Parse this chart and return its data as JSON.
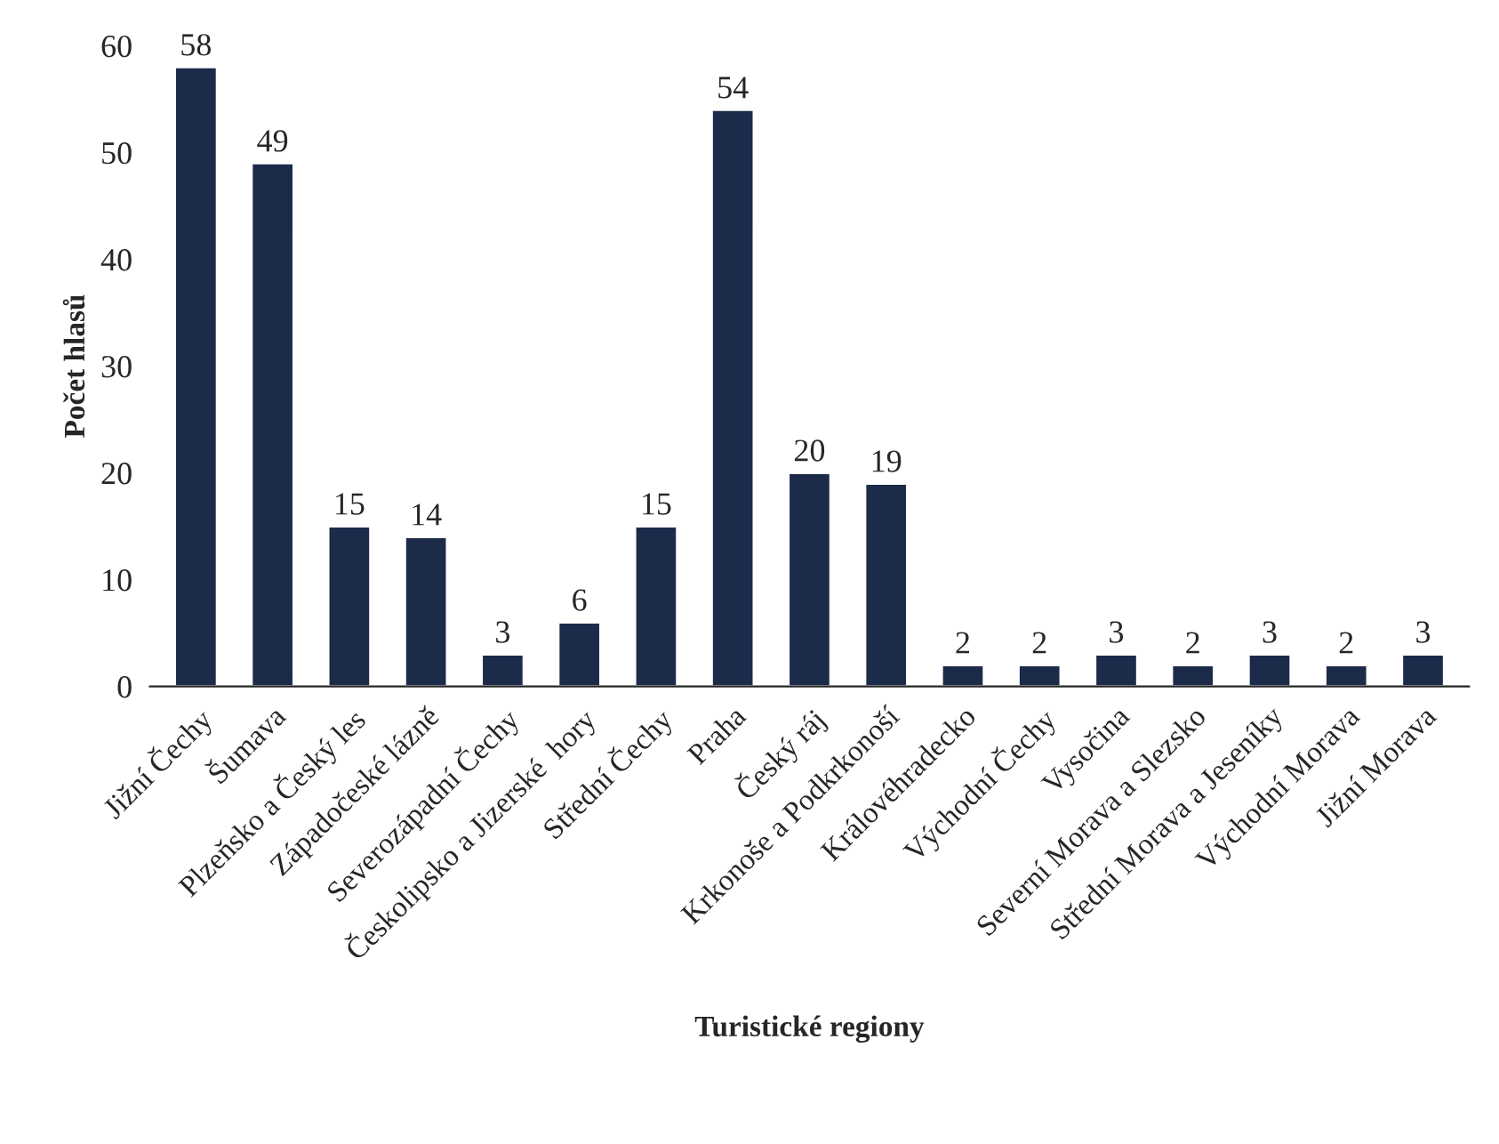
{
  "chart_data": {
    "type": "bar",
    "xlabel": "Turistické regiony",
    "ylabel": "Počet hlasů",
    "categories": [
      "Jižní Čechy",
      "Šumava",
      "Plzeňsko a Český les",
      "Západočeské lázně",
      "Severozápadní Čechy",
      "Českolipsko a Jizerské  hory",
      "Střední Čechy",
      "Praha",
      "Český ráj",
      "Krkonoše a Podkrkonoší",
      "Královéhradecko",
      "Východní Čechy",
      "Vysočina",
      "Severní Morava a Slezsko",
      "Střední Morava a Jeseníky",
      "Východní Morava",
      "Jižní Morava"
    ],
    "values": [
      58,
      49,
      15,
      14,
      3,
      6,
      15,
      54,
      20,
      19,
      2,
      2,
      3,
      2,
      3,
      2,
      3
    ],
    "color": "#1c2b4a",
    "ylim": [
      0,
      60
    ],
    "yticks": [
      0,
      10,
      20,
      30,
      40,
      50,
      60
    ],
    "grid": false,
    "data_labels": true,
    "legend": false
  }
}
